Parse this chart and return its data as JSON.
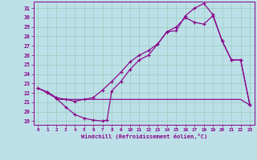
{
  "xlabel": "Windchill (Refroidissement éolien,°C)",
  "bg_color": "#bde0e8",
  "grid_color": "#99ccbb",
  "line_color": "#880088",
  "xlim": [
    -0.5,
    23.5
  ],
  "ylim": [
    18.6,
    31.7
  ],
  "xticks": [
    0,
    1,
    2,
    3,
    4,
    5,
    6,
    7,
    8,
    9,
    10,
    11,
    12,
    13,
    14,
    15,
    16,
    17,
    18,
    19,
    20,
    21,
    22,
    23
  ],
  "yticks": [
    19,
    20,
    21,
    22,
    23,
    24,
    25,
    26,
    27,
    28,
    29,
    30,
    31
  ],
  "line1_x": [
    0,
    1,
    2,
    3,
    4,
    5,
    6,
    7,
    7.5,
    8,
    9,
    10,
    11,
    12,
    13,
    14,
    15,
    16,
    17,
    18,
    19,
    20,
    21,
    22,
    23
  ],
  "line1_y": [
    22.5,
    22.0,
    21.4,
    20.5,
    19.7,
    19.3,
    19.1,
    19.0,
    19.1,
    22.2,
    23.2,
    24.5,
    25.5,
    26.0,
    27.2,
    28.5,
    28.6,
    30.2,
    31.0,
    31.5,
    30.3,
    27.5,
    25.5,
    25.5,
    20.7
  ],
  "line2_x": [
    0,
    1,
    2,
    3,
    4,
    5,
    6,
    7,
    8,
    9,
    10,
    11,
    12,
    13,
    14,
    15,
    16,
    17,
    18,
    19,
    20,
    21,
    22,
    23
  ],
  "line2_y": [
    22.5,
    22.1,
    21.5,
    21.3,
    21.1,
    21.3,
    21.5,
    22.3,
    23.2,
    24.2,
    25.3,
    26.0,
    26.5,
    27.2,
    28.5,
    29.0,
    30.0,
    29.5,
    29.3,
    30.2,
    27.5,
    25.5,
    25.5,
    20.7
  ],
  "line3_x": [
    2,
    3,
    4,
    5,
    6,
    7,
    8,
    9,
    10,
    11,
    12,
    13,
    14,
    15,
    16,
    17,
    18,
    19,
    20,
    21,
    22,
    23
  ],
  "line3_y": [
    21.3,
    21.3,
    21.3,
    21.3,
    21.3,
    21.3,
    21.3,
    21.3,
    21.3,
    21.3,
    21.3,
    21.3,
    21.3,
    21.3,
    21.3,
    21.3,
    21.3,
    21.3,
    21.3,
    21.3,
    21.3,
    20.7
  ]
}
